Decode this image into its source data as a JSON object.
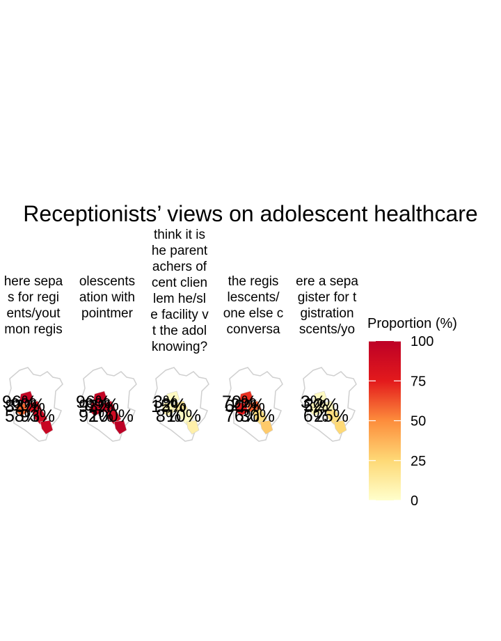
{
  "chart_data": {
    "type": "choropleth-map",
    "title": "Receptionists’ views on adolescent healthcare",
    "map_outline": "Kenya counties",
    "fill_scale": {
      "name": "Proportion (%)",
      "range": [
        0,
        100
      ],
      "ticks": [
        0,
        25,
        50,
        75,
        100
      ],
      "low_color": "#ffffcc",
      "mid_color": "#fd8d3c",
      "high_color": "#bd0026"
    },
    "facets": [
      {
        "title_lines": [
          "here sepa",
          "s for regi",
          "ents/yout",
          "mon regis"
        ],
        "county_values": [
          96,
          83,
          90,
          58,
          93
        ],
        "labels": [
          "96%",
          "83%",
          "90%",
          "58%",
          "93%"
        ]
      },
      {
        "title_lines": [
          "olescents",
          "ation with",
          "pointmer"
        ],
        "county_values": [
          96,
          93,
          89,
          92,
          100
        ],
        "labels": [
          "96%",
          "93%",
          "89%",
          "92%",
          "100%"
        ]
      },
      {
        "title_lines": [
          "think it is",
          "he parent",
          "achers of",
          "cent clien",
          "lem he/sl",
          "e facility v",
          "t the adol",
          "knowing?"
        ],
        "county_values": [
          3,
          15,
          2,
          8,
          10
        ],
        "labels": [
          "3%",
          "15%",
          "2%",
          "8%",
          "10%"
        ]
      },
      {
        "title_lines": [
          "the regis",
          "lescents/",
          "one else c",
          "conversa"
        ],
        "county_values": [
          70,
          60,
          22,
          76,
          30
        ],
        "labels": [
          "70%",
          "60%",
          "22%",
          "76%",
          "30%"
        ]
      },
      {
        "title_lines": [
          "ere a sepa",
          "gister for t",
          "gistration",
          "scents/yo"
        ],
        "county_values": [
          3,
          5,
          22,
          6,
          25
        ],
        "labels": [
          "3%",
          "5%",
          "22%",
          "6%",
          "25%"
        ]
      }
    ]
  }
}
